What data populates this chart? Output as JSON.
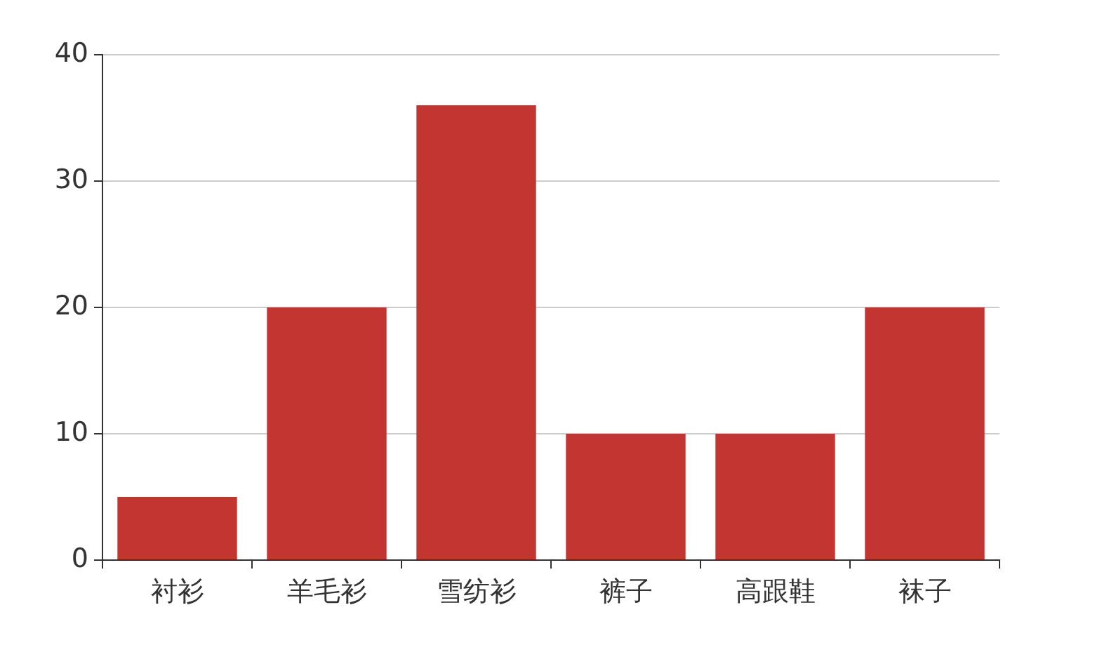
{
  "chart_data": {
    "type": "bar",
    "categories": [
      "衬衫",
      "羊毛衫",
      "雪纺衫",
      "裤子",
      "高跟鞋",
      "袜子"
    ],
    "values": [
      5,
      20,
      36,
      10,
      10,
      20
    ],
    "color": "#c23531",
    "ylim": [
      0,
      40
    ],
    "yticks": [
      0,
      10,
      20,
      30,
      40
    ],
    "grid": "y"
  }
}
